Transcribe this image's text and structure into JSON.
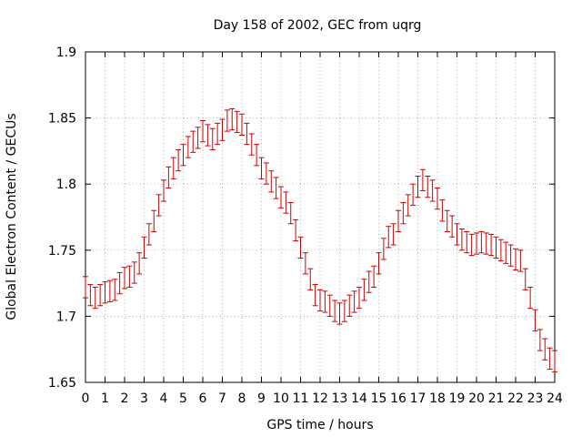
{
  "chart_data": {
    "type": "scatter",
    "title": "Day 158 of 2002, GEC from uqrg",
    "xlabel": "GPS time / hours",
    "ylabel": "Global Electron Content / GECUs",
    "xlim": [
      0,
      24
    ],
    "ylim": [
      1.65,
      1.9
    ],
    "x_ticks": [
      "0",
      "1",
      "2",
      "3",
      "4",
      "5",
      "6",
      "7",
      "8",
      "9",
      "10",
      "11",
      "12",
      "13",
      "14",
      "15",
      "16",
      "17",
      "18",
      "19",
      "20",
      "21",
      "22",
      "23",
      "24"
    ],
    "y_ticks": [
      "1.65",
      "1.7",
      "1.75",
      "1.8",
      "1.85",
      "1.9"
    ],
    "grid": true,
    "error_bar": 0.008,
    "marker_color": "#cc0000",
    "series": [
      {
        "x": [
          0,
          0.25,
          0.5,
          0.75,
          1,
          1.25,
          1.5,
          1.75,
          2,
          2.25,
          2.5,
          2.75,
          3,
          3.25,
          3.5,
          3.75,
          4,
          4.25,
          4.5,
          4.75,
          5,
          5.25,
          5.5,
          5.75,
          6,
          6.25,
          6.5,
          6.75,
          7,
          7.25,
          7.5,
          7.75,
          8,
          8.25,
          8.5,
          8.75,
          9,
          9.25,
          9.5,
          9.75,
          10,
          10.25,
          10.5,
          10.75,
          11,
          11.25,
          11.5,
          11.75,
          12,
          12.25,
          12.5,
          12.75,
          13,
          13.25,
          13.5,
          13.75,
          14,
          14.25,
          14.5,
          14.75,
          15,
          15.25,
          15.5,
          15.75,
          16,
          16.25,
          16.5,
          16.75,
          17,
          17.25,
          17.5,
          17.75,
          18,
          18.25,
          18.5,
          18.75,
          19,
          19.25,
          19.5,
          19.75,
          20,
          20.25,
          20.5,
          20.75,
          21,
          21.25,
          21.5,
          21.75,
          22,
          22.25,
          22.5,
          22.75,
          23,
          23.25,
          23.5,
          23.75,
          24
        ],
        "y": [
          1.722,
          1.716,
          1.714,
          1.716,
          1.718,
          1.719,
          1.72,
          1.725,
          1.729,
          1.73,
          1.733,
          1.74,
          1.752,
          1.762,
          1.772,
          1.784,
          1.795,
          1.805,
          1.812,
          1.818,
          1.822,
          1.828,
          1.832,
          1.835,
          1.84,
          1.837,
          1.834,
          1.838,
          1.841,
          1.848,
          1.849,
          1.847,
          1.845,
          1.838,
          1.83,
          1.822,
          1.812,
          1.808,
          1.802,
          1.797,
          1.79,
          1.786,
          1.778,
          1.765,
          1.752,
          1.74,
          1.728,
          1.716,
          1.712,
          1.711,
          1.708,
          1.704,
          1.702,
          1.704,
          1.708,
          1.711,
          1.714,
          1.72,
          1.726,
          1.73,
          1.74,
          1.751,
          1.76,
          1.762,
          1.772,
          1.778,
          1.784,
          1.792,
          1.798,
          1.803,
          1.798,
          1.795,
          1.789,
          1.78,
          1.772,
          1.768,
          1.762,
          1.758,
          1.756,
          1.754,
          1.755,
          1.756,
          1.755,
          1.754,
          1.752,
          1.75,
          1.748,
          1.746,
          1.743,
          1.742,
          1.728,
          1.714,
          1.697,
          1.682,
          1.675,
          1.668,
          1.666
        ]
      }
    ]
  }
}
